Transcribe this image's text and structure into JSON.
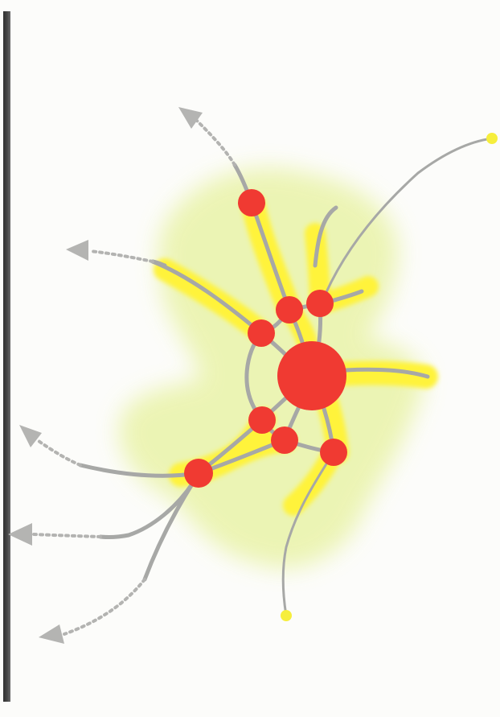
{
  "diagram": {
    "colors": {
      "node": "#f03a32",
      "edge": "#a9aaa8",
      "highlight": "#fff23a",
      "glow": "#ebf3a6",
      "endpoint": "#f6ee3c",
      "arrow": "#b4b4b2",
      "frame": "#3a3a3a"
    },
    "nodes": [
      {
        "id": "hub",
        "role": "central"
      },
      {
        "id": "n-top"
      },
      {
        "id": "n-upper-a"
      },
      {
        "id": "n-upper-b"
      },
      {
        "id": "n-upper-left"
      },
      {
        "id": "n-mid-left"
      },
      {
        "id": "n-mid-center"
      },
      {
        "id": "n-mid-right"
      },
      {
        "id": "n-lower-left"
      }
    ],
    "edges": [
      {
        "from": "n-top",
        "to": "n-upper-a"
      },
      {
        "from": "n-upper-a",
        "to": "hub"
      },
      {
        "from": "n-upper-a",
        "to": "n-upper-left"
      },
      {
        "from": "n-upper-b",
        "to": "hub"
      },
      {
        "from": "n-upper-left",
        "to": "hub"
      },
      {
        "from": "hub",
        "to": "n-mid-left"
      },
      {
        "from": "hub",
        "to": "n-mid-center"
      },
      {
        "from": "hub",
        "to": "n-mid-right"
      },
      {
        "from": "n-mid-left",
        "to": "n-lower-left"
      },
      {
        "from": "n-mid-center",
        "to": "n-mid-right"
      },
      {
        "from": "n-mid-center",
        "to": "n-lower-left"
      }
    ],
    "outgoing_arrows": 5,
    "endpoints": 2
  }
}
